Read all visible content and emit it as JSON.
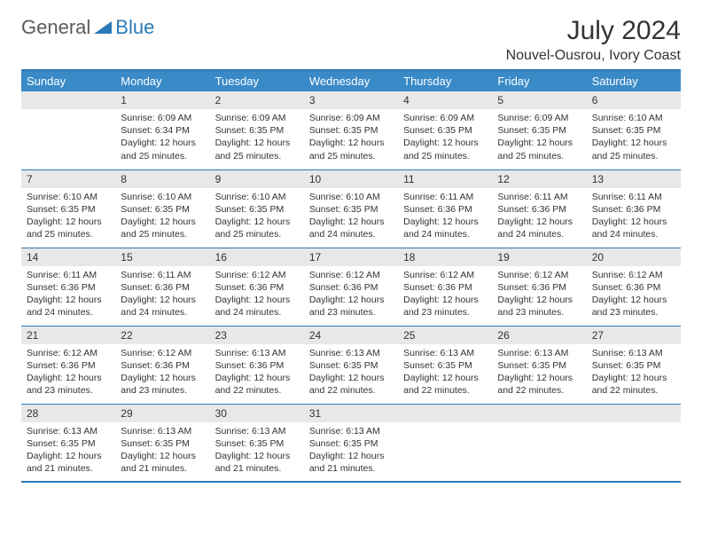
{
  "logo": {
    "part1": "General",
    "part2": "Blue"
  },
  "title": "July 2024",
  "location": "Nouvel-Ousrou, Ivory Coast",
  "colors": {
    "header_bg": "#3a8ac8",
    "header_text": "#ffffff",
    "border": "#2a7ab8",
    "daynum_bg": "#e8e8e8",
    "text": "#333333",
    "logo_gray": "#5a5a5a",
    "logo_blue": "#2a7ab8",
    "page_bg": "#ffffff"
  },
  "weekdays": [
    "Sunday",
    "Monday",
    "Tuesday",
    "Wednesday",
    "Thursday",
    "Friday",
    "Saturday"
  ],
  "weeks": [
    [
      null,
      {
        "n": "1",
        "sr": "6:09 AM",
        "ss": "6:34 PM",
        "dl": "12 hours and 25 minutes."
      },
      {
        "n": "2",
        "sr": "6:09 AM",
        "ss": "6:35 PM",
        "dl": "12 hours and 25 minutes."
      },
      {
        "n": "3",
        "sr": "6:09 AM",
        "ss": "6:35 PM",
        "dl": "12 hours and 25 minutes."
      },
      {
        "n": "4",
        "sr": "6:09 AM",
        "ss": "6:35 PM",
        "dl": "12 hours and 25 minutes."
      },
      {
        "n": "5",
        "sr": "6:09 AM",
        "ss": "6:35 PM",
        "dl": "12 hours and 25 minutes."
      },
      {
        "n": "6",
        "sr": "6:10 AM",
        "ss": "6:35 PM",
        "dl": "12 hours and 25 minutes."
      }
    ],
    [
      {
        "n": "7",
        "sr": "6:10 AM",
        "ss": "6:35 PM",
        "dl": "12 hours and 25 minutes."
      },
      {
        "n": "8",
        "sr": "6:10 AM",
        "ss": "6:35 PM",
        "dl": "12 hours and 25 minutes."
      },
      {
        "n": "9",
        "sr": "6:10 AM",
        "ss": "6:35 PM",
        "dl": "12 hours and 25 minutes."
      },
      {
        "n": "10",
        "sr": "6:10 AM",
        "ss": "6:35 PM",
        "dl": "12 hours and 24 minutes."
      },
      {
        "n": "11",
        "sr": "6:11 AM",
        "ss": "6:36 PM",
        "dl": "12 hours and 24 minutes."
      },
      {
        "n": "12",
        "sr": "6:11 AM",
        "ss": "6:36 PM",
        "dl": "12 hours and 24 minutes."
      },
      {
        "n": "13",
        "sr": "6:11 AM",
        "ss": "6:36 PM",
        "dl": "12 hours and 24 minutes."
      }
    ],
    [
      {
        "n": "14",
        "sr": "6:11 AM",
        "ss": "6:36 PM",
        "dl": "12 hours and 24 minutes."
      },
      {
        "n": "15",
        "sr": "6:11 AM",
        "ss": "6:36 PM",
        "dl": "12 hours and 24 minutes."
      },
      {
        "n": "16",
        "sr": "6:12 AM",
        "ss": "6:36 PM",
        "dl": "12 hours and 24 minutes."
      },
      {
        "n": "17",
        "sr": "6:12 AM",
        "ss": "6:36 PM",
        "dl": "12 hours and 23 minutes."
      },
      {
        "n": "18",
        "sr": "6:12 AM",
        "ss": "6:36 PM",
        "dl": "12 hours and 23 minutes."
      },
      {
        "n": "19",
        "sr": "6:12 AM",
        "ss": "6:36 PM",
        "dl": "12 hours and 23 minutes."
      },
      {
        "n": "20",
        "sr": "6:12 AM",
        "ss": "6:36 PM",
        "dl": "12 hours and 23 minutes."
      }
    ],
    [
      {
        "n": "21",
        "sr": "6:12 AM",
        "ss": "6:36 PM",
        "dl": "12 hours and 23 minutes."
      },
      {
        "n": "22",
        "sr": "6:12 AM",
        "ss": "6:36 PM",
        "dl": "12 hours and 23 minutes."
      },
      {
        "n": "23",
        "sr": "6:13 AM",
        "ss": "6:36 PM",
        "dl": "12 hours and 22 minutes."
      },
      {
        "n": "24",
        "sr": "6:13 AM",
        "ss": "6:35 PM",
        "dl": "12 hours and 22 minutes."
      },
      {
        "n": "25",
        "sr": "6:13 AM",
        "ss": "6:35 PM",
        "dl": "12 hours and 22 minutes."
      },
      {
        "n": "26",
        "sr": "6:13 AM",
        "ss": "6:35 PM",
        "dl": "12 hours and 22 minutes."
      },
      {
        "n": "27",
        "sr": "6:13 AM",
        "ss": "6:35 PM",
        "dl": "12 hours and 22 minutes."
      }
    ],
    [
      {
        "n": "28",
        "sr": "6:13 AM",
        "ss": "6:35 PM",
        "dl": "12 hours and 21 minutes."
      },
      {
        "n": "29",
        "sr": "6:13 AM",
        "ss": "6:35 PM",
        "dl": "12 hours and 21 minutes."
      },
      {
        "n": "30",
        "sr": "6:13 AM",
        "ss": "6:35 PM",
        "dl": "12 hours and 21 minutes."
      },
      {
        "n": "31",
        "sr": "6:13 AM",
        "ss": "6:35 PM",
        "dl": "12 hours and 21 minutes."
      },
      null,
      null,
      null
    ]
  ],
  "labels": {
    "sunrise": "Sunrise: ",
    "sunset": "Sunset: ",
    "daylight": "Daylight: "
  }
}
